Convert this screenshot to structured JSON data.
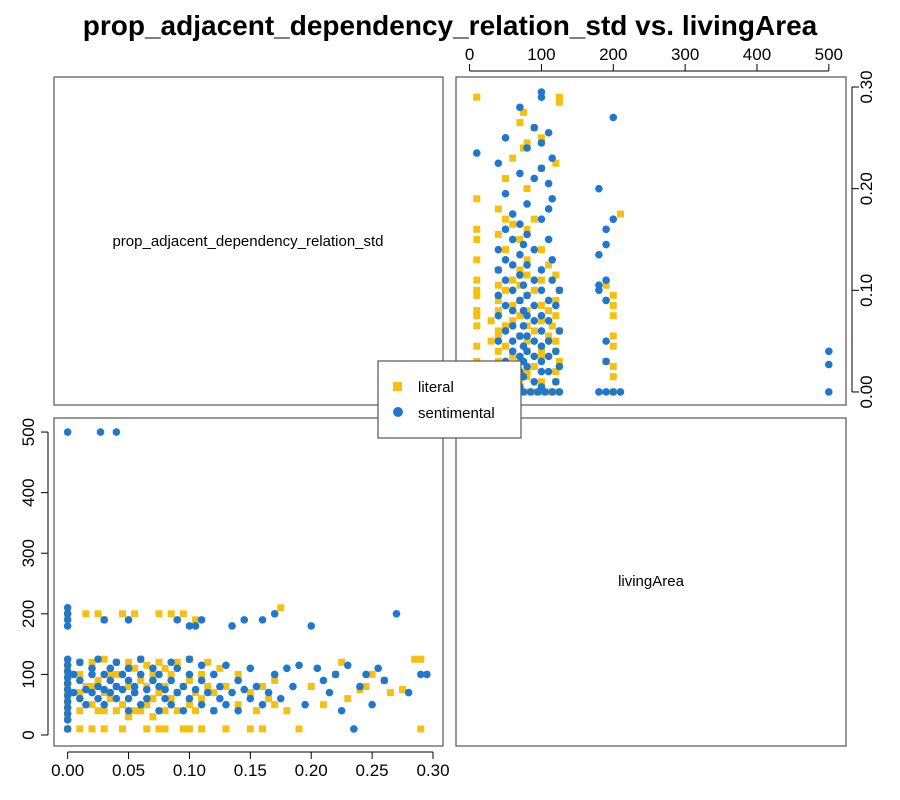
{
  "chart_data": {
    "type": "scatter",
    "title": "prop_adjacent_dependency_relation_std vs. livingArea",
    "variables": [
      "prop_adjacent_dependency_relation_std",
      "livingArea"
    ],
    "x_var": "prop_adjacent_dependency_relation_std",
    "y_var": "livingArea",
    "prop_ticks": [
      "0.00",
      "0.05",
      "0.10",
      "0.15",
      "0.20",
      "0.25",
      "0.30"
    ],
    "area_ticks": [
      "0",
      "100",
      "200",
      "300",
      "400",
      "500"
    ],
    "prop_range": [
      -0.003,
      0.3
    ],
    "area_range": [
      -5,
      510
    ],
    "legend": {
      "placement": "center",
      "entries": [
        {
          "name": "literal",
          "color": "#F5C010",
          "marker": "square"
        },
        {
          "name": "sentimental",
          "color": "#1F78D0",
          "marker": "circle"
        }
      ]
    },
    "series": [
      {
        "name": "literal",
        "color": "#F5C010",
        "marker": "square",
        "points": [
          [
            0.0,
            10
          ],
          [
            0.0,
            30
          ],
          [
            0.0,
            40
          ],
          [
            0.0,
            50
          ],
          [
            0.0,
            60
          ],
          [
            0.0,
            70
          ],
          [
            0.0,
            80
          ],
          [
            0.0,
            90
          ],
          [
            0.0,
            100
          ],
          [
            0.0,
            110
          ],
          [
            0.0,
            120
          ],
          [
            0.0,
            200
          ],
          [
            0.01,
            10
          ],
          [
            0.01,
            40
          ],
          [
            0.01,
            70
          ],
          [
            0.01,
            100
          ],
          [
            0.01,
            120
          ],
          [
            0.015,
            80
          ],
          [
            0.015,
            200
          ],
          [
            0.02,
            10
          ],
          [
            0.02,
            50
          ],
          [
            0.02,
            80
          ],
          [
            0.02,
            120
          ],
          [
            0.025,
            40
          ],
          [
            0.025,
            90
          ],
          [
            0.025,
            200
          ],
          [
            0.03,
            10
          ],
          [
            0.03,
            40
          ],
          [
            0.03,
            70
          ],
          [
            0.03,
            125
          ],
          [
            0.03,
            190
          ],
          [
            0.035,
            60
          ],
          [
            0.035,
            100
          ],
          [
            0.04,
            40
          ],
          [
            0.04,
            80
          ],
          [
            0.04,
            100
          ],
          [
            0.04,
            120
          ],
          [
            0.045,
            10
          ],
          [
            0.045,
            50
          ],
          [
            0.045,
            200
          ],
          [
            0.05,
            30
          ],
          [
            0.05,
            80
          ],
          [
            0.05,
            120
          ],
          [
            0.055,
            40
          ],
          [
            0.055,
            70
          ],
          [
            0.055,
            110
          ],
          [
            0.055,
            200
          ],
          [
            0.06,
            40
          ],
          [
            0.06,
            90
          ],
          [
            0.06,
            125
          ],
          [
            0.065,
            10
          ],
          [
            0.065,
            50
          ],
          [
            0.065,
            80
          ],
          [
            0.065,
            115
          ],
          [
            0.07,
            30
          ],
          [
            0.07,
            60
          ],
          [
            0.07,
            100
          ],
          [
            0.075,
            10
          ],
          [
            0.075,
            70
          ],
          [
            0.075,
            120
          ],
          [
            0.075,
            200
          ],
          [
            0.08,
            10
          ],
          [
            0.08,
            40
          ],
          [
            0.08,
            80
          ],
          [
            0.08,
            110
          ],
          [
            0.085,
            60
          ],
          [
            0.085,
            100
          ],
          [
            0.085,
            200
          ],
          [
            0.09,
            40
          ],
          [
            0.09,
            70
          ],
          [
            0.09,
            120
          ],
          [
            0.095,
            10
          ],
          [
            0.095,
            80
          ],
          [
            0.095,
            200
          ],
          [
            0.1,
            10
          ],
          [
            0.1,
            50
          ],
          [
            0.1,
            90
          ],
          [
            0.1,
            125
          ],
          [
            0.105,
            40
          ],
          [
            0.105,
            70
          ],
          [
            0.105,
            190
          ],
          [
            0.11,
            10
          ],
          [
            0.11,
            60
          ],
          [
            0.11,
            100
          ],
          [
            0.115,
            80
          ],
          [
            0.115,
            120
          ],
          [
            0.12,
            40
          ],
          [
            0.12,
            70
          ],
          [
            0.125,
            110
          ],
          [
            0.13,
            10
          ],
          [
            0.13,
            80
          ],
          [
            0.14,
            50
          ],
          [
            0.14,
            100
          ],
          [
            0.15,
            10
          ],
          [
            0.15,
            70
          ],
          [
            0.155,
            40
          ],
          [
            0.16,
            10
          ],
          [
            0.16,
            80
          ],
          [
            0.165,
            60
          ],
          [
            0.17,
            50
          ],
          [
            0.17,
            90
          ],
          [
            0.175,
            210
          ],
          [
            0.18,
            40
          ],
          [
            0.19,
            10
          ],
          [
            0.2,
            80
          ],
          [
            0.21,
            50
          ],
          [
            0.22,
            100
          ],
          [
            0.225,
            120
          ],
          [
            0.23,
            60
          ],
          [
            0.24,
            75
          ],
          [
            0.245,
            80
          ],
          [
            0.25,
            100
          ],
          [
            0.26,
            90
          ],
          [
            0.265,
            70
          ],
          [
            0.275,
            75
          ],
          [
            0.285,
            125
          ],
          [
            0.29,
            125
          ],
          [
            0.29,
            10
          ]
        ]
      },
      {
        "name": "sentimental",
        "color": "#1F78D0",
        "marker": "circle",
        "points": [
          [
            0.0,
            500
          ],
          [
            0.027,
            500
          ],
          [
            0.04,
            500
          ],
          [
            0.0,
            210
          ],
          [
            0.0,
            200
          ],
          [
            0.0,
            190
          ],
          [
            0.0,
            180
          ],
          [
            0.0,
            125
          ],
          [
            0.0,
            115
          ],
          [
            0.0,
            105
          ],
          [
            0.0,
            95
          ],
          [
            0.0,
            85
          ],
          [
            0.0,
            75
          ],
          [
            0.0,
            65
          ],
          [
            0.0,
            55
          ],
          [
            0.0,
            45
          ],
          [
            0.0,
            35
          ],
          [
            0.0,
            25
          ],
          [
            0.0,
            10
          ],
          [
            0.005,
            70
          ],
          [
            0.005,
            100
          ],
          [
            0.01,
            60
          ],
          [
            0.01,
            90
          ],
          [
            0.01,
            120
          ],
          [
            0.015,
            50
          ],
          [
            0.015,
            75
          ],
          [
            0.02,
            70
          ],
          [
            0.02,
            100
          ],
          [
            0.02,
            110
          ],
          [
            0.025,
            60
          ],
          [
            0.025,
            80
          ],
          [
            0.025,
            125
          ],
          [
            0.03,
            50
          ],
          [
            0.03,
            75
          ],
          [
            0.03,
            100
          ],
          [
            0.03,
            190
          ],
          [
            0.035,
            70
          ],
          [
            0.035,
            90
          ],
          [
            0.035,
            110
          ],
          [
            0.04,
            60
          ],
          [
            0.04,
            80
          ],
          [
            0.04,
            120
          ],
          [
            0.045,
            75
          ],
          [
            0.045,
            100
          ],
          [
            0.05,
            40
          ],
          [
            0.05,
            60
          ],
          [
            0.05,
            90
          ],
          [
            0.05,
            110
          ],
          [
            0.05,
            190
          ],
          [
            0.055,
            70
          ],
          [
            0.055,
            80
          ],
          [
            0.06,
            50
          ],
          [
            0.06,
            100
          ],
          [
            0.06,
            125
          ],
          [
            0.065,
            60
          ],
          [
            0.065,
            75
          ],
          [
            0.07,
            90
          ],
          [
            0.07,
            110
          ],
          [
            0.075,
            40
          ],
          [
            0.075,
            80
          ],
          [
            0.075,
            100
          ],
          [
            0.08,
            60
          ],
          [
            0.08,
            75
          ],
          [
            0.085,
            50
          ],
          [
            0.085,
            90
          ],
          [
            0.085,
            120
          ],
          [
            0.09,
            70
          ],
          [
            0.09,
            110
          ],
          [
            0.09,
            190
          ],
          [
            0.095,
            40
          ],
          [
            0.095,
            80
          ],
          [
            0.1,
            60
          ],
          [
            0.1,
            100
          ],
          [
            0.1,
            125
          ],
          [
            0.1,
            180
          ],
          [
            0.105,
            75
          ],
          [
            0.105,
            180
          ],
          [
            0.11,
            50
          ],
          [
            0.11,
            90
          ],
          [
            0.11,
            115
          ],
          [
            0.11,
            190
          ],
          [
            0.115,
            70
          ],
          [
            0.12,
            40
          ],
          [
            0.12,
            100
          ],
          [
            0.125,
            60
          ],
          [
            0.125,
            80
          ],
          [
            0.13,
            50
          ],
          [
            0.13,
            115
          ],
          [
            0.135,
            70
          ],
          [
            0.135,
            180
          ],
          [
            0.14,
            90
          ],
          [
            0.14,
            40
          ],
          [
            0.145,
            75
          ],
          [
            0.145,
            190
          ],
          [
            0.15,
            60
          ],
          [
            0.15,
            110
          ],
          [
            0.155,
            80
          ],
          [
            0.16,
            50
          ],
          [
            0.16,
            190
          ],
          [
            0.165,
            70
          ],
          [
            0.17,
            100
          ],
          [
            0.17,
            200
          ],
          [
            0.175,
            60
          ],
          [
            0.18,
            110
          ],
          [
            0.185,
            80
          ],
          [
            0.19,
            115
          ],
          [
            0.195,
            50
          ],
          [
            0.2,
            180
          ],
          [
            0.205,
            110
          ],
          [
            0.21,
            90
          ],
          [
            0.215,
            70
          ],
          [
            0.22,
            100
          ],
          [
            0.225,
            40
          ],
          [
            0.23,
            115
          ],
          [
            0.235,
            10
          ],
          [
            0.24,
            80
          ],
          [
            0.245,
            100
          ],
          [
            0.25,
            50
          ],
          [
            0.255,
            110
          ],
          [
            0.26,
            90
          ],
          [
            0.27,
            200
          ],
          [
            0.28,
            70
          ],
          [
            0.29,
            100
          ],
          [
            0.295,
            100
          ]
        ]
      }
    ]
  }
}
